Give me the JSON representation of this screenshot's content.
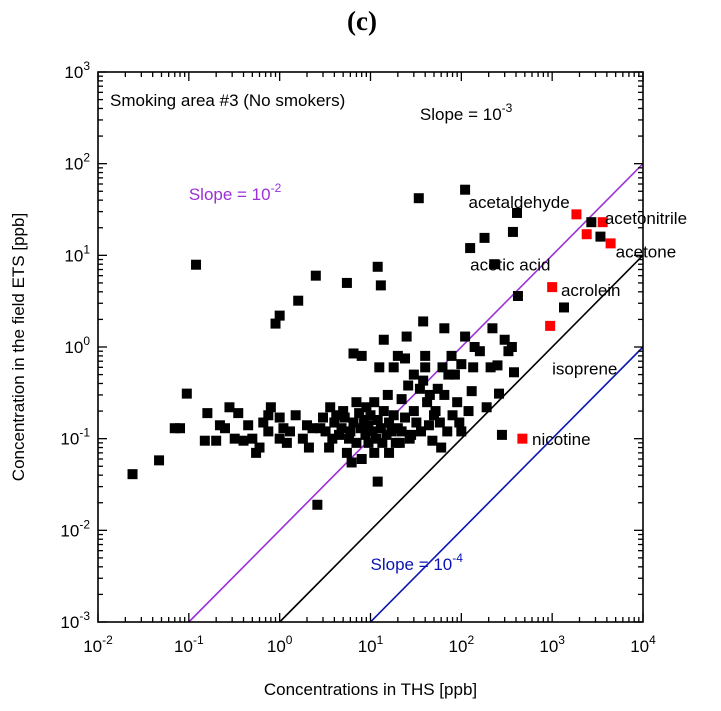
{
  "panel_label": "(c)",
  "chart_data": {
    "type": "scatter",
    "title": "Smoking area #3 (No smokers)",
    "xlabel": "Concentrations in THS [ppb]",
    "ylabel": "Concentration in the field ETS [ppb]",
    "x_scale": "log",
    "y_scale": "log",
    "xlim": [
      0.01,
      10000
    ],
    "ylim": [
      0.001,
      1000
    ],
    "x_ticks": [
      {
        "value": 0.01,
        "base": "10",
        "exp": "-2"
      },
      {
        "value": 0.1,
        "base": "10",
        "exp": "-1"
      },
      {
        "value": 1,
        "base": "10",
        "exp": "0"
      },
      {
        "value": 10,
        "base": "10",
        "exp": "1"
      },
      {
        "value": 100,
        "base": "10",
        "exp": "2"
      },
      {
        "value": 1000,
        "base": "10",
        "exp": "3"
      },
      {
        "value": 10000,
        "base": "10",
        "exp": "4"
      }
    ],
    "y_ticks": [
      {
        "value": 0.001,
        "base": "10",
        "exp": "-3"
      },
      {
        "value": 0.01,
        "base": "10",
        "exp": "-2"
      },
      {
        "value": 0.1,
        "base": "10",
        "exp": "-1"
      },
      {
        "value": 1,
        "base": "10",
        "exp": "0"
      },
      {
        "value": 10,
        "base": "10",
        "exp": "1"
      },
      {
        "value": 100,
        "base": "10",
        "exp": "2"
      },
      {
        "value": 1000,
        "base": "10",
        "exp": "3"
      }
    ],
    "reference_lines": [
      {
        "slope": 0.01,
        "label_base": "Slope = 10",
        "label_exp": "-2",
        "color": "#9b30d9",
        "label_at": [
          0.1,
          40
        ]
      },
      {
        "slope": 0.001,
        "label_base": "Slope = 10",
        "label_exp": "-3",
        "color": "#000000",
        "label_at": [
          35,
          300
        ]
      },
      {
        "slope": 0.0001,
        "label_base": "Slope = 10",
        "label_exp": "-4",
        "color": "#0a14b4",
        "label_at": [
          10,
          0.0037
        ]
      }
    ],
    "series": [
      {
        "color": "#000000",
        "points": [
          [
            0.024,
            0.041
          ],
          [
            0.047,
            0.058
          ],
          [
            0.07,
            0.13
          ],
          [
            0.08,
            0.13
          ],
          [
            0.095,
            0.31
          ],
          [
            0.12,
            7.9
          ],
          [
            0.15,
            0.095
          ],
          [
            0.16,
            0.19
          ],
          [
            0.2,
            0.095
          ],
          [
            0.22,
            0.14
          ],
          [
            0.25,
            0.13
          ],
          [
            0.28,
            0.22
          ],
          [
            0.32,
            0.1
          ],
          [
            0.35,
            0.19
          ],
          [
            0.4,
            0.095
          ],
          [
            0.45,
            0.14
          ],
          [
            0.5,
            0.1
          ],
          [
            0.55,
            0.07
          ],
          [
            0.6,
            0.08
          ],
          [
            0.66,
            0.15
          ],
          [
            0.75,
            0.12
          ],
          [
            0.8,
            0.22
          ],
          [
            0.75,
            0.18
          ],
          [
            0.9,
            1.8
          ],
          [
            1.0,
            2.2
          ],
          [
            1.0,
            0.1
          ],
          [
            1.0,
            0.17
          ],
          [
            1.1,
            0.13
          ],
          [
            1.2,
            0.09
          ],
          [
            1.3,
            0.12
          ],
          [
            1.6,
            3.2
          ],
          [
            1.5,
            0.18
          ],
          [
            1.8,
            0.1
          ],
          [
            2.0,
            0.14
          ],
          [
            2.1,
            0.08
          ],
          [
            2.3,
            0.13
          ],
          [
            2.5,
            6.0
          ],
          [
            2.6,
            0.019
          ],
          [
            2.8,
            0.13
          ],
          [
            3.0,
            0.17
          ],
          [
            3.2,
            0.12
          ],
          [
            3.5,
            0.08
          ],
          [
            3.6,
            0.22
          ],
          [
            3.8,
            0.1
          ],
          [
            4.0,
            0.15
          ],
          [
            4.2,
            0.18
          ],
          [
            4.5,
            0.11
          ],
          [
            4.8,
            0.13
          ],
          [
            5.0,
            0.2
          ],
          [
            5.2,
            0.17
          ],
          [
            5.5,
            5.0
          ],
          [
            5.5,
            0.07
          ],
          [
            5.8,
            0.1
          ],
          [
            6.0,
            0.12
          ],
          [
            6.2,
            0.055
          ],
          [
            6.5,
            0.85
          ],
          [
            6.5,
            0.15
          ],
          [
            7.0,
            0.25
          ],
          [
            7.0,
            0.09
          ],
          [
            7.5,
            0.19
          ],
          [
            7.8,
            0.13
          ],
          [
            8.0,
            0.8
          ],
          [
            8.0,
            0.06
          ],
          [
            8.5,
            0.16
          ],
          [
            8.8,
            0.11
          ],
          [
            9.0,
            0.22
          ],
          [
            9.5,
            0.09
          ],
          [
            9.5,
            0.14
          ],
          [
            10.0,
            0.18
          ],
          [
            10.5,
            0.12
          ],
          [
            11.0,
            0.07
          ],
          [
            11.0,
            0.25
          ],
          [
            11.5,
            0.1
          ],
          [
            12.0,
            7.5
          ],
          [
            12.0,
            0.034
          ],
          [
            12.0,
            0.16
          ],
          [
            12.5,
            0.6
          ],
          [
            13.0,
            4.7
          ],
          [
            13.0,
            0.13
          ],
          [
            13.5,
            0.09
          ],
          [
            14.0,
            1.2
          ],
          [
            14.0,
            0.2
          ],
          [
            15.0,
            0.11
          ],
          [
            15.5,
            0.3
          ],
          [
            16.0,
            0.15
          ],
          [
            16.0,
            0.07
          ],
          [
            17.0,
            0.12
          ],
          [
            18.0,
            0.18
          ],
          [
            18.0,
            0.6
          ],
          [
            19.0,
            0.09
          ],
          [
            20.0,
            0.13
          ],
          [
            20.0,
            0.8
          ],
          [
            21.0,
            0.09
          ],
          [
            22.0,
            0.27
          ],
          [
            22.0,
            0.12
          ],
          [
            24.0,
            0.75
          ],
          [
            24.0,
            0.17
          ],
          [
            25.0,
            1.3
          ],
          [
            26.0,
            0.38
          ],
          [
            27.0,
            0.1
          ],
          [
            28.0,
            0.11
          ],
          [
            30.0,
            0.2
          ],
          [
            30.0,
            0.5
          ],
          [
            32.0,
            0.15
          ],
          [
            34.0,
            42.0
          ],
          [
            35.0,
            0.35
          ],
          [
            36.0,
            0.12
          ],
          [
            38.0,
            1.9
          ],
          [
            38.0,
            0.43
          ],
          [
            40.0,
            0.8
          ],
          [
            40.0,
            0.6
          ],
          [
            42.0,
            0.25
          ],
          [
            44.0,
            0.14
          ],
          [
            45.0,
            0.3
          ],
          [
            48.0,
            0.095
          ],
          [
            50.0,
            0.18
          ],
          [
            52.0,
            0.2
          ],
          [
            55.0,
            0.35
          ],
          [
            58.0,
            0.15
          ],
          [
            60.0,
            0.08
          ],
          [
            62.0,
            0.6
          ],
          [
            65.0,
            1.6
          ],
          [
            65.0,
            0.3
          ],
          [
            70.0,
            0.12
          ],
          [
            72.0,
            0.5
          ],
          [
            78.0,
            0.8
          ],
          [
            80.0,
            0.18
          ],
          [
            85.0,
            0.5
          ],
          [
            90.0,
            0.25
          ],
          [
            95.0,
            0.15
          ],
          [
            100.0,
            0.65
          ],
          [
            100.0,
            0.12
          ],
          [
            110.0,
            52.0
          ],
          [
            110.0,
            1.3
          ],
          [
            120.0,
            0.2
          ],
          [
            125.0,
            12.0
          ],
          [
            130.0,
            0.33
          ],
          [
            135.0,
            0.6
          ],
          [
            140.0,
            1.0
          ],
          [
            160.0,
            0.9
          ],
          [
            180.0,
            15.5
          ],
          [
            190.0,
            0.22
          ],
          [
            210.0,
            0.6
          ],
          [
            220.0,
            1.6
          ],
          [
            230.0,
            8.0
          ],
          [
            250.0,
            0.63
          ],
          [
            260.0,
            0.31
          ],
          [
            280.0,
            0.11
          ],
          [
            300.0,
            1.2
          ],
          [
            330.0,
            0.9
          ],
          [
            360.0,
            1.0
          ],
          [
            370.0,
            18.0
          ],
          [
            380.0,
            0.53
          ],
          [
            410.0,
            29.0
          ],
          [
            420.0,
            3.6
          ],
          [
            1350.0,
            2.7
          ],
          [
            2700.0,
            23.0
          ],
          [
            3400.0,
            16.0
          ]
        ]
      },
      {
        "color": "#ff0000",
        "points": [
          [
            1850.0,
            28.0
          ],
          [
            2400.0,
            17.0
          ],
          [
            3600.0,
            23.0
          ],
          [
            4400.0,
            13.5
          ],
          [
            1000.0,
            4.5
          ],
          [
            950.0,
            1.7
          ],
          [
            470.0,
            0.1
          ]
        ]
      }
    ],
    "annotations": [
      {
        "text": "acetaldehyde",
        "x": 120,
        "y": 33
      },
      {
        "text": "acetic acid",
        "x": 125,
        "y": 6.8
      },
      {
        "text": "acetonitrile",
        "x": 3800,
        "y": 22
      },
      {
        "text": "acetone",
        "x": 5000,
        "y": 9.5
      },
      {
        "text": "acrolein",
        "x": 1250,
        "y": 3.6
      },
      {
        "text": "isoprene",
        "x": 1000,
        "y": 0.5
      },
      {
        "text": "nicotine",
        "x": 600,
        "y": 0.085
      }
    ]
  }
}
